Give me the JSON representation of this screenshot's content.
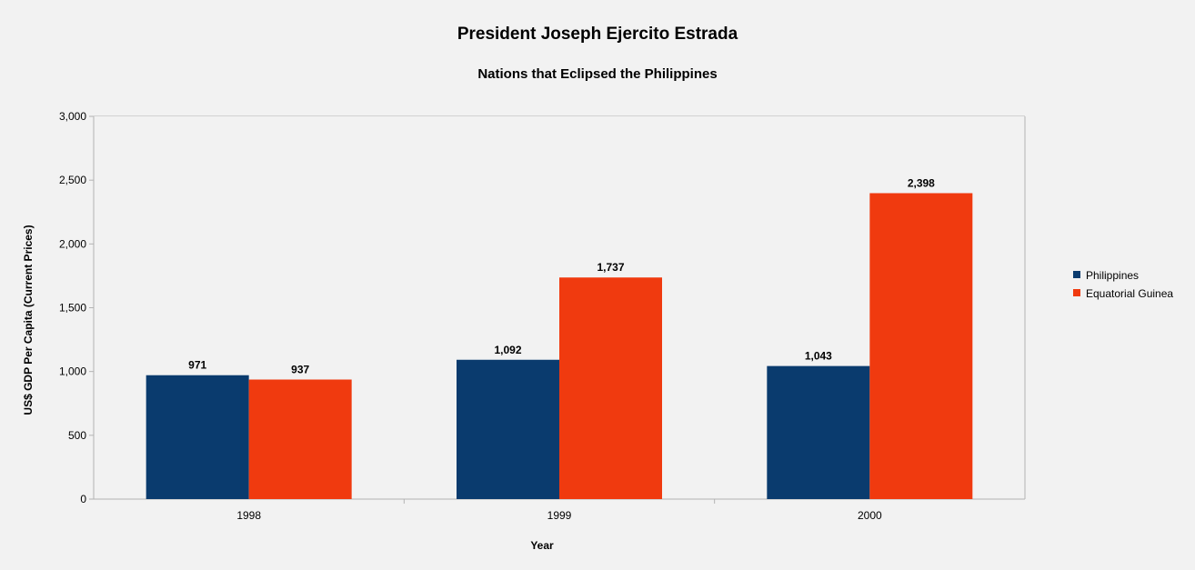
{
  "chart_data": {
    "type": "bar",
    "title": "President Joseph Ejercito Estrada",
    "subtitle": "Nations that Eclipsed the Philippines",
    "xlabel": "Year",
    "ylabel": "US$ GDP Per Capita (Current Prices)",
    "categories": [
      "1998",
      "1999",
      "2000"
    ],
    "series": [
      {
        "name": "Philippines",
        "color": "#0a3b6e",
        "values": [
          971,
          1092,
          1043
        ],
        "labels": [
          "971",
          "1,092",
          "1,043"
        ]
      },
      {
        "name": "Equatorial Guinea",
        "color": "#f03a0f",
        "values": [
          937,
          1737,
          2398
        ],
        "labels": [
          "937",
          "1,737",
          "2,398"
        ]
      }
    ],
    "ylim": [
      0,
      3000
    ],
    "yticks": [
      0,
      500,
      1000,
      1500,
      2000,
      2500,
      3000
    ],
    "ytick_labels": [
      "0",
      "500",
      "1,000",
      "1,500",
      "2,000",
      "2,500",
      "3,000"
    ],
    "grid": true,
    "legend_position": "right"
  }
}
